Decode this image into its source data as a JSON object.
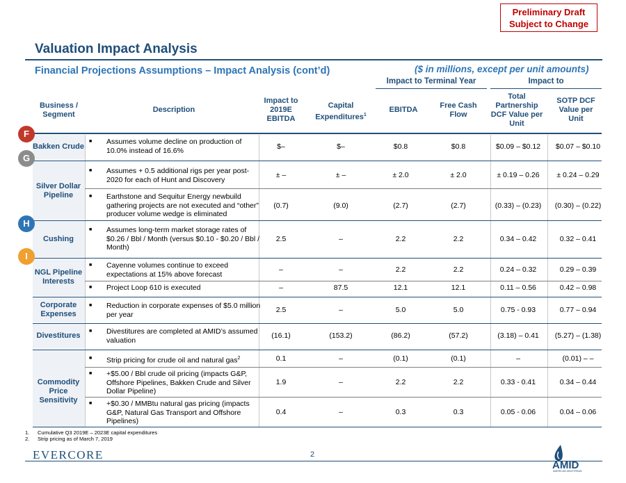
{
  "draft_stamp": {
    "line1": "Preliminary Draft",
    "line2": "Subject to Change"
  },
  "title": "Valuation Impact Analysis",
  "subtitle": "Financial Projections Assumptions – Impact Analysis (cont’d)",
  "units_note": "($ in millions, except per unit amounts)",
  "group_headers": {
    "terminal": "Impact to Terminal Year",
    "impact": "Impact to"
  },
  "columns": {
    "segment": "Business / Segment",
    "description": "Description",
    "ebitda_2019": "Impact to 2019E EBITDA",
    "capex": "Capital Expenditures",
    "capex_sup": "1",
    "ebitda": "EBITDA",
    "fcf": "Free Cash Flow",
    "per_unit": "Total Partnership DCF Value per Unit",
    "sotp": "SOTP DCF Value per Unit"
  },
  "markers": [
    "F",
    "G",
    "H",
    "I"
  ],
  "segments": {
    "bakken": "Bakken Crude",
    "silver": "Silver Dollar Pipeline",
    "cushing": "Cushing",
    "ngl": "NGL Pipeline Interests",
    "corporate": "Corporate Expenses",
    "divest": "Divestitures",
    "commodity": "Commodity Price Sensitivity"
  },
  "rows": [
    {
      "desc": "Assumes volume decline on production of 10.0% instead of 16.6%",
      "e19": "$–",
      "capex": "$–",
      "ebitda": "$0.8",
      "fcf": "$0.8",
      "unit": "$0.09 – $0.12",
      "sotp": "$0.07 – $0.10"
    },
    {
      "desc": "Assumes + 0.5 additional rigs per year post-2020 for each of Hunt and Discovery",
      "e19": "± –",
      "capex": "± –",
      "ebitda": "± 2.0",
      "fcf": "± 2.0",
      "unit": "± 0.19 – 0.26",
      "sotp": "± 0.24 – 0.29"
    },
    {
      "desc": "Earthstone and Sequitur Energy newbuild gathering projects are not executed and “other” producer volume wedge is eliminated",
      "e19": "(0.7)",
      "capex": "(9.0)",
      "ebitda": "(2.7)",
      "fcf": "(2.7)",
      "unit": "(0.33) – (0.23)",
      "sotp": "(0.30) – (0.22)"
    },
    {
      "desc": "Assumes long-term market storage rates of $0.26 / Bbl / Month (versus $0.10 - $0.20 / Bbl / Month)",
      "e19": "2.5",
      "capex": "–",
      "ebitda": "2.2",
      "fcf": "2.2",
      "unit": "0.34 – 0.42",
      "sotp": "0.32 – 0.41"
    },
    {
      "desc": "Cayenne volumes continue to exceed expectations at 15% above forecast",
      "e19": "–",
      "capex": "–",
      "ebitda": "2.2",
      "fcf": "2.2",
      "unit": "0.24 –  0.32",
      "sotp": "0.29 – 0.39"
    },
    {
      "desc": "Project Loop 610 is executed",
      "e19": "–",
      "capex": "87.5",
      "ebitda": "12.1",
      "fcf": "12.1",
      "unit": "0.11 – 0.56",
      "sotp": "0.42 – 0.98"
    },
    {
      "desc": "Reduction in corporate expenses of $5.0 million per year",
      "e19": "2.5",
      "capex": "–",
      "ebitda": "5.0",
      "fcf": "5.0",
      "unit": "0.75 - 0.93",
      "sotp": "0.77 – 0.94"
    },
    {
      "desc": "Divestitures are completed at AMID’s assumed valuation",
      "e19": "(16.1)",
      "capex": "(153.2)",
      "ebitda": "(86.2)",
      "fcf": "(57.2)",
      "unit": "(3.18) – 0.41",
      "sotp": "(5.27) – (1.38)"
    },
    {
      "desc": "Strip pricing for crude oil and natural gas",
      "desc_sup": "2",
      "e19": "0.1",
      "capex": "–",
      "ebitda": "(0.1)",
      "fcf": "(0.1)",
      "unit": "–",
      "sotp": "(0.01) – –"
    },
    {
      "desc": "+$5.00 / Bbl crude oil pricing (impacts G&P, Offshore Pipelines, Bakken Crude and Silver Dollar Pipeline)",
      "e19": "1.9",
      "capex": "–",
      "ebitda": "2.2",
      "fcf": "2.2",
      "unit": "0.33 - 0.41",
      "sotp": "0.34 – 0.44"
    },
    {
      "desc": "+$0.30 / MMBtu natural gas pricing (impacts G&P, Natural Gas Transport and Offshore Pipelines)",
      "e19": "0.4",
      "capex": "–",
      "ebitda": "0.3",
      "fcf": "0.3",
      "unit": "0.05 - 0.06",
      "sotp": "0.04 – 0.06"
    }
  ],
  "footnotes": [
    {
      "num": "1.",
      "text": "Cumulative Q3 2019E – 2023E capital expenditures"
    },
    {
      "num": "2.",
      "text": "Strip pricing as of March 7, 2019"
    }
  ],
  "footer": {
    "company": "EVERCORE",
    "page": "2",
    "logo_text": "AMID",
    "logo_sub": "AMERICAN MIDSTREAM"
  },
  "colors": {
    "navy": "#1f4e79",
    "blue": "#2e75b6",
    "red": "#c00000",
    "marker_red": "#c0392b",
    "marker_gray": "#8c8c8c",
    "marker_blue": "#2e75b6",
    "marker_orange": "#f0a030"
  }
}
